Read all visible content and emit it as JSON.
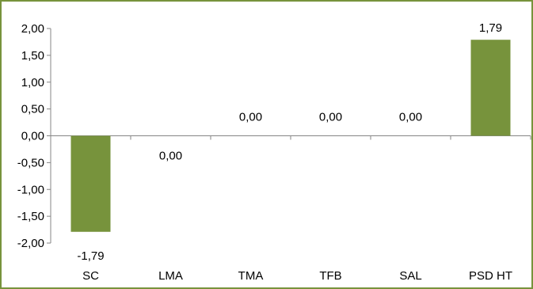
{
  "chart_data": {
    "type": "bar",
    "categories": [
      "SC",
      "LMA",
      "TMA",
      "TFB",
      "SAL",
      "PSD HT"
    ],
    "values": [
      -1.79,
      0.0,
      0.0,
      0.0,
      0.0,
      1.79
    ],
    "data_labels": [
      "-1,79",
      "0,00",
      "0,00",
      "0,00",
      "0,00",
      "1,79"
    ],
    "title": "",
    "xlabel": "",
    "ylabel": "",
    "ylim": [
      -2.0,
      2.0
    ],
    "yticks": [
      2.0,
      1.5,
      1.0,
      0.5,
      0.0,
      -0.5,
      -1.0,
      -1.5,
      -2.0
    ],
    "ytick_labels": [
      "2,00",
      "1,50",
      "1,00",
      "0,50",
      "0,00",
      "-0,50",
      "-1,00",
      "-1,50",
      "-2,00"
    ],
    "grid": false,
    "legend": "none",
    "colors": {
      "bar": "#77933c",
      "frame": "#77933c",
      "axis": "#868686"
    }
  }
}
